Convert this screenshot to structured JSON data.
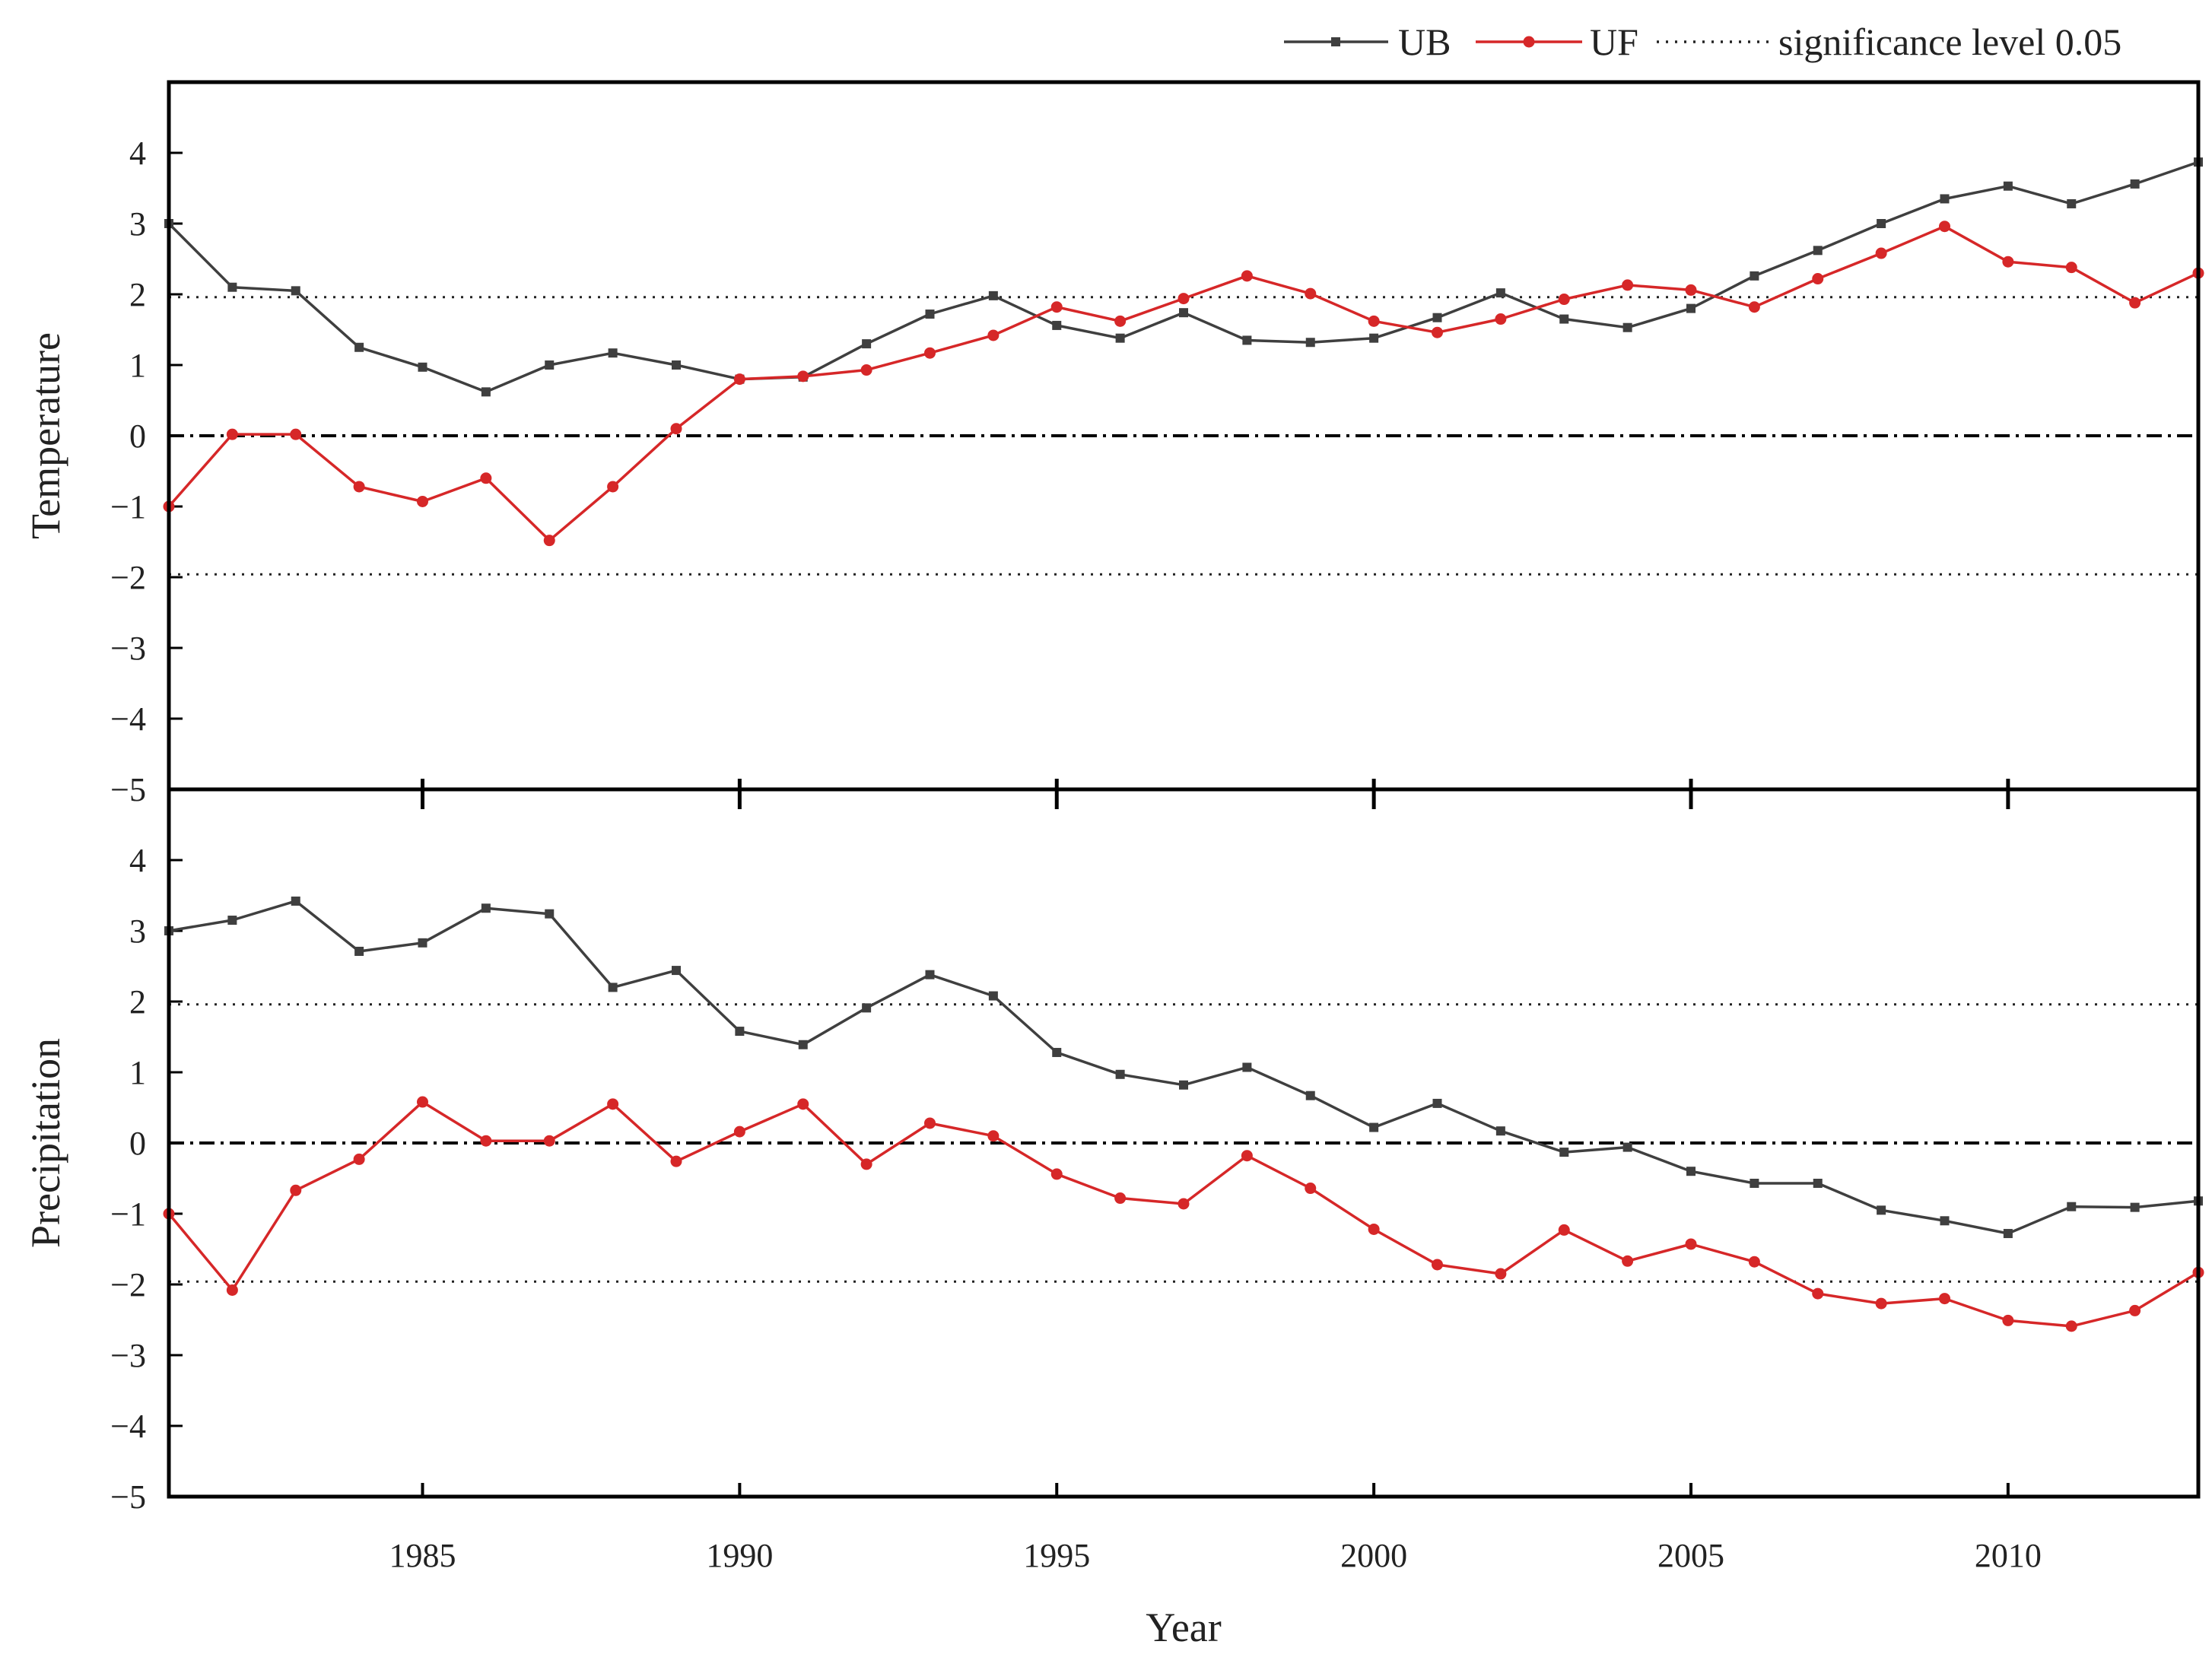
{
  "chart_data": {
    "type": "line",
    "x": [
      1981,
      1982,
      1983,
      1984,
      1985,
      1986,
      1987,
      1988,
      1989,
      1990,
      1991,
      1992,
      1993,
      1994,
      1995,
      1996,
      1997,
      1998,
      1999,
      2000,
      2001,
      2002,
      2003,
      2004,
      2005,
      2006,
      2007,
      2008,
      2009,
      2010,
      2011,
      2012,
      2013
    ],
    "xlim": [
      1981,
      2013
    ],
    "xlabel": "Year",
    "xticks": [
      1985,
      1990,
      1995,
      2000,
      2005,
      2010
    ],
    "xtick_labels": [
      "1985",
      "1990",
      "1995",
      "2000",
      "2005",
      "2010"
    ],
    "ylim": [
      -5,
      5
    ],
    "yticks": [
      -5,
      -4,
      -3,
      -2,
      -1,
      0,
      1,
      2,
      3,
      4
    ],
    "ytick_labels": [
      "−5",
      "−4",
      "−3",
      "−2",
      "−1",
      "0",
      "1",
      "2",
      "3",
      "4"
    ],
    "significance": 1.96,
    "zero_line": 0,
    "legend": {
      "position": "top-right",
      "entries": [
        {
          "key": "UB",
          "label": "UB",
          "style": "line-square",
          "color": "#3f3f3f"
        },
        {
          "key": "UF",
          "label": "UF",
          "style": "line-circle",
          "color": "#d62728"
        },
        {
          "key": "sig",
          "label": "significance level 0.05",
          "style": "dotted",
          "color": "#222222"
        }
      ]
    },
    "panels": [
      {
        "name": "temperature",
        "ylabel": "Temperature",
        "series": [
          {
            "name": "UB",
            "color": "#3f3f3f",
            "marker": "square",
            "values": [
              3.0,
              2.1,
              2.05,
              1.25,
              0.97,
              0.62,
              1.0,
              1.17,
              1.0,
              0.8,
              0.83,
              1.3,
              1.72,
              1.98,
              1.56,
              1.38,
              1.74,
              1.35,
              1.32,
              1.38,
              1.67,
              2.02,
              1.65,
              1.53,
              1.8,
              2.26,
              2.62,
              3.0,
              3.35,
              3.53,
              3.28,
              3.56,
              3.87
            ]
          },
          {
            "name": "UF",
            "color": "#d62728",
            "marker": "circle",
            "values": [
              -1.0,
              0.02,
              0.02,
              -0.72,
              -0.93,
              -0.6,
              -1.48,
              -0.72,
              0.1,
              0.8,
              0.84,
              0.93,
              1.17,
              1.42,
              1.82,
              1.62,
              1.94,
              2.26,
              2.01,
              1.62,
              1.46,
              1.65,
              1.93,
              2.13,
              2.06,
              1.82,
              2.22,
              2.58,
              2.96,
              2.46,
              2.38,
              1.88,
              2.3
            ]
          }
        ]
      },
      {
        "name": "precipitation",
        "ylabel": "Precipitation",
        "series": [
          {
            "name": "UB",
            "color": "#3f3f3f",
            "marker": "square",
            "values": [
              3.0,
              3.15,
              3.42,
              2.71,
              2.83,
              3.32,
              3.24,
              2.2,
              2.44,
              1.58,
              1.39,
              1.91,
              2.38,
              2.08,
              1.28,
              0.97,
              0.82,
              1.07,
              0.67,
              0.22,
              0.56,
              0.17,
              -0.13,
              -0.06,
              -0.4,
              -0.57,
              -0.57,
              -0.95,
              -1.1,
              -1.28,
              -0.9,
              -0.91,
              -0.82
            ]
          },
          {
            "name": "UF",
            "color": "#d62728",
            "marker": "circle",
            "values": [
              -1.0,
              -2.08,
              -0.67,
              -0.23,
              0.58,
              0.03,
              0.03,
              0.55,
              -0.26,
              0.16,
              0.55,
              -0.3,
              0.28,
              0.1,
              -0.44,
              -0.78,
              -0.86,
              -0.18,
              -0.64,
              -1.22,
              -1.72,
              -1.85,
              -1.23,
              -1.67,
              -1.43,
              -1.68,
              -2.13,
              -2.27,
              -2.2,
              -2.51,
              -2.59,
              -2.37,
              -1.83
            ]
          }
        ]
      }
    ]
  }
}
